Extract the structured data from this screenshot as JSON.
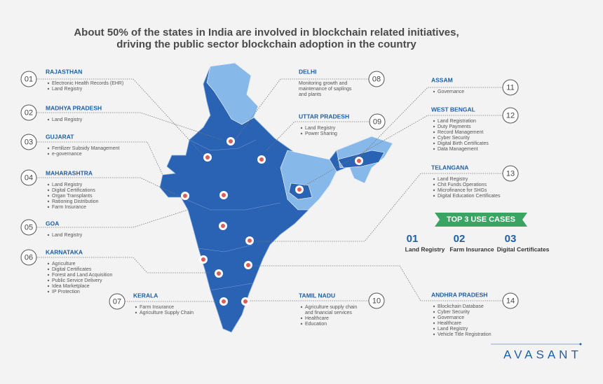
{
  "header": {
    "title_lines": [
      "About 50% of the states in India are involved in blockchain related initiatives,",
      "driving the public sector blockchain adoption in the country"
    ]
  },
  "states": [
    {
      "number": "01",
      "name": "RAJASTHAN",
      "items": [
        "Electronic Health Records (EHR)",
        "Land Registry"
      ]
    },
    {
      "number": "02",
      "name": "MADHYA PRADESH",
      "items": [
        "Land Registry"
      ]
    },
    {
      "number": "03",
      "name": "GUJARAT",
      "items": [
        "Fertilizer Subsidy Management",
        "e-governance"
      ]
    },
    {
      "number": "04",
      "name": "MAHARASHTRA",
      "items": [
        "Land Registry",
        "Digital Certifications",
        "Organ Transplants",
        "Rationing Distribution",
        "Farm Insurance"
      ]
    },
    {
      "number": "05",
      "name": "GOA",
      "items": [
        "Land Registry"
      ]
    },
    {
      "number": "06",
      "name": "KARNATAKA",
      "items": [
        "Agriculture",
        "Digital Certificates",
        "Forest and Land Acquisition",
        "Public Service Delivery",
        "Idea Marketplace",
        "IP Protection"
      ]
    },
    {
      "number": "07",
      "name": "KERALA",
      "items": [
        "Farm Insurance",
        "Agriculture Supply Chain"
      ]
    },
    {
      "number": "08",
      "name": "DELHI",
      "description": [
        "Monitoring growth and",
        "maintenance of saplings",
        "and plants"
      ]
    },
    {
      "number": "09",
      "name": "UTTAR PRADESH",
      "items": [
        "Land Registry",
        "Power Sharing"
      ]
    },
    {
      "number": "10",
      "name": "TAMIL NADU",
      "items": [
        [
          "Agriculture supply chain",
          "and financial services"
        ],
        "Healthcare",
        "Education"
      ]
    },
    {
      "number": "11",
      "name": "ASSAM",
      "items": [
        "Governance"
      ]
    },
    {
      "number": "12",
      "name": "WEST BENGAL",
      "items": [
        "Land Registration",
        "Duty Payments",
        "Record Management",
        "Cyber Security",
        "Digital Birth Certificates",
        "Data Management"
      ]
    },
    {
      "number": "13",
      "name": "TELANGANA",
      "items": [
        "Land Registry",
        "Chit Funds Operations",
        "Microfinance for SHGs",
        "Digital Education Certificates"
      ]
    },
    {
      "number": "14",
      "name": "ANDHRA PRADESH",
      "items": [
        "Blockchain Database",
        "Cyber Security",
        "Governance",
        "Healthcare",
        "Land Registry",
        "Vehicle Title Registration"
      ]
    }
  ],
  "top_use_cases": {
    "heading": "TOP 3 USE CASES",
    "items": [
      {
        "number": "01",
        "label": "Land Registry"
      },
      {
        "number": "02",
        "label": "Farm Insurance"
      },
      {
        "number": "03",
        "label": "Digital Certificates"
      }
    ]
  },
  "logo": "AVASANT"
}
